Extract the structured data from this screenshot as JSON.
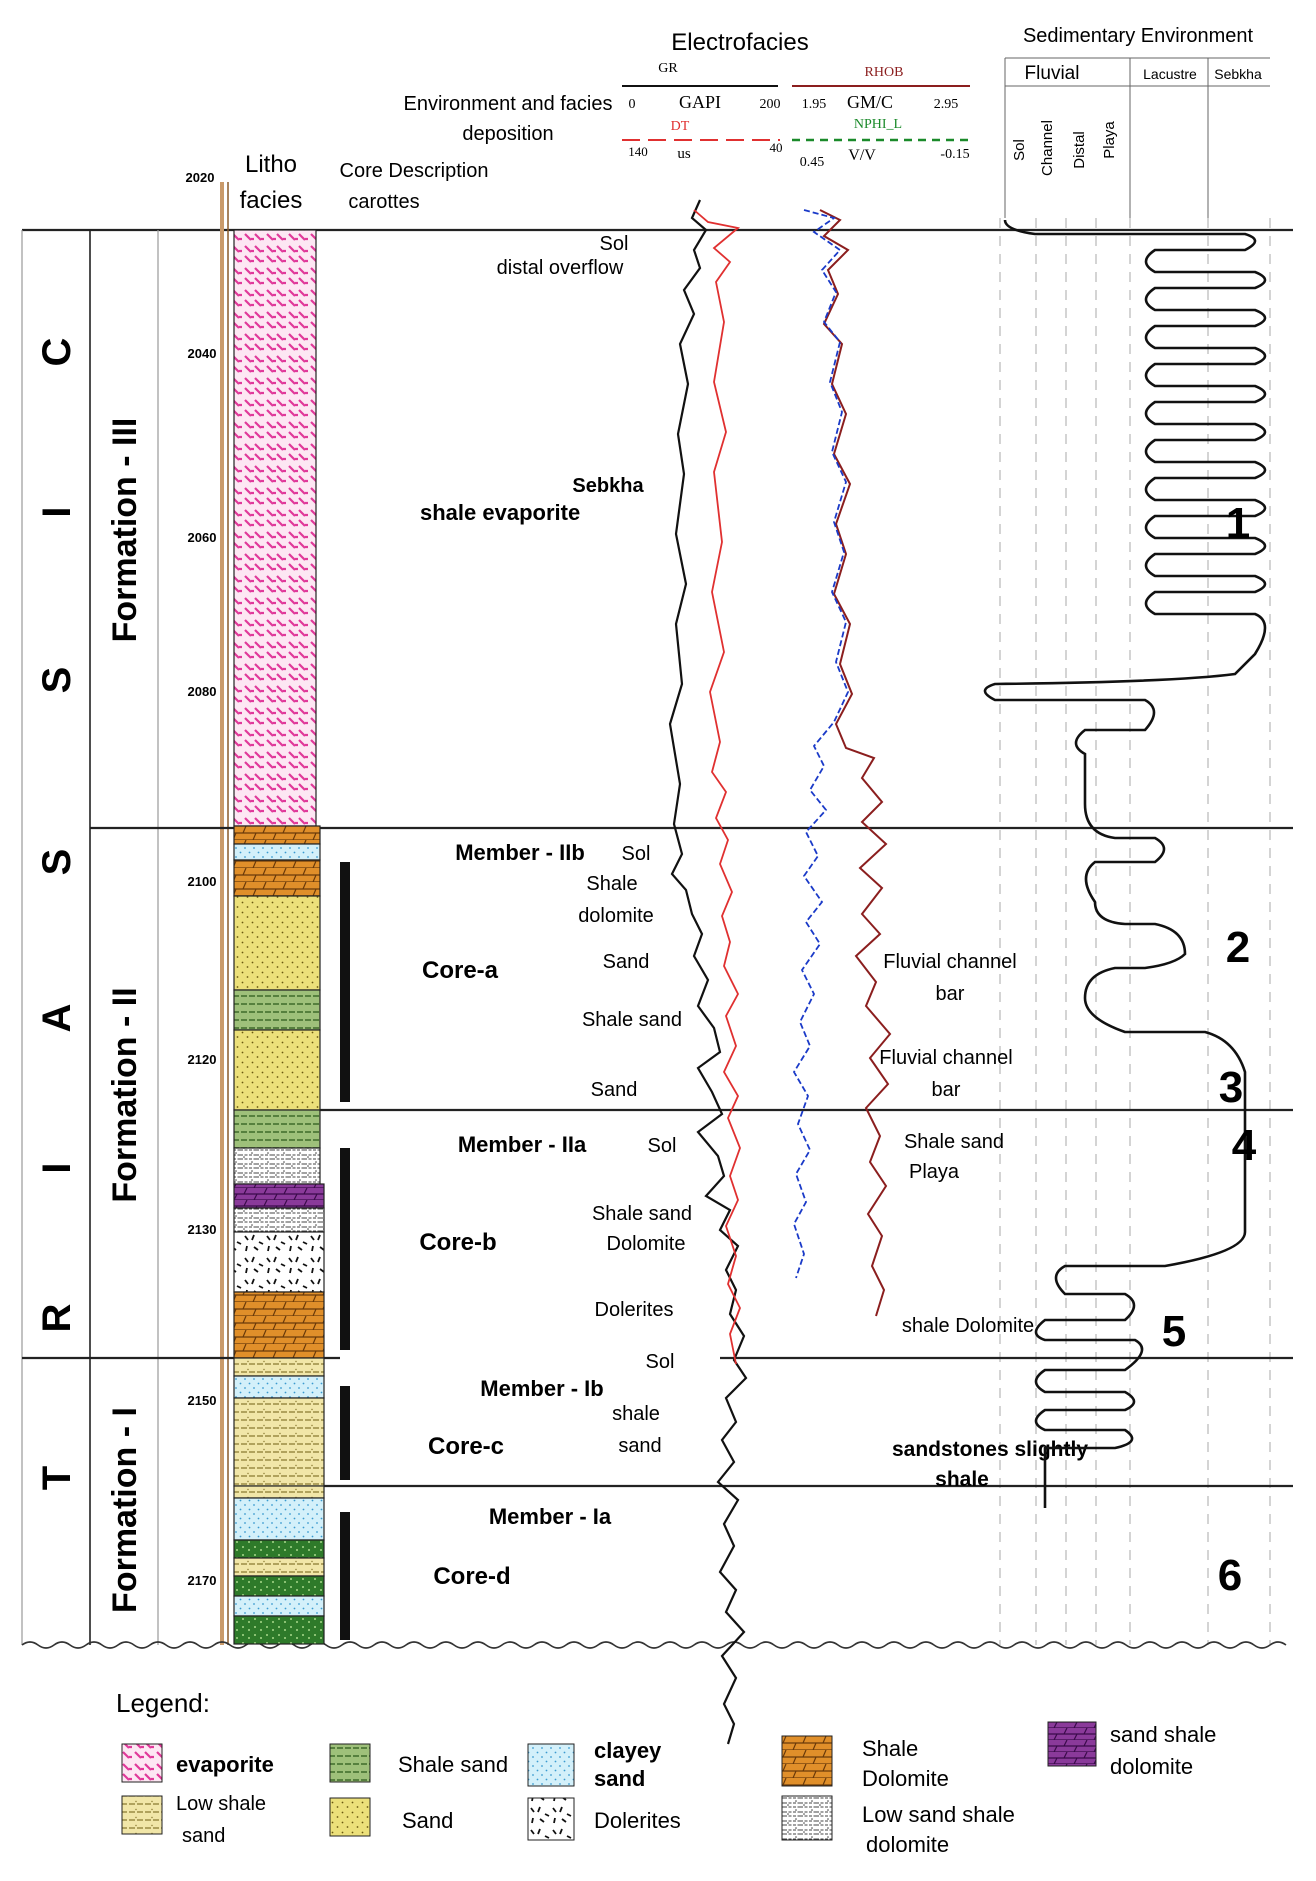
{
  "header": {
    "electrofacies_title": "Electrofacies",
    "env_facies_line1": "Environment and facies",
    "env_facies_line2": "deposition",
    "litho_line1": "Litho",
    "litho_line2": "facies",
    "core_desc_line1": "Core Description",
    "core_desc_line2": "carottes",
    "top_depth": "2020",
    "sed_env_title": "Sedimentary Environment",
    "fluvial": "Fluvial",
    "lacustre": "Lacustre",
    "sebkha": "Sebkha",
    "sub_sol": "Sol",
    "sub_channel": "Channel",
    "sub_distal": "Distal",
    "sub_playa": "Playa"
  },
  "logs": {
    "gr": {
      "name": "GR",
      "unit": "GAPI",
      "min": "0",
      "max": "200",
      "color": "#111111"
    },
    "rhob": {
      "name": "RHOB",
      "unit": "GM/C",
      "min": "1.95",
      "max": "2.95",
      "color": "#8b1e1e"
    },
    "dt": {
      "name": "DT",
      "unit": "us",
      "min": "140",
      "max": "40",
      "color": "#e03030"
    },
    "nphi": {
      "name": "NPHI_L",
      "unit": "V/V",
      "min": "0.45",
      "max": "-0.15",
      "color": "#1a8a2a"
    }
  },
  "depth_ticks": [
    "2040",
    "2060",
    "2080",
    "2100",
    "2120",
    "2130",
    "2150",
    "2170"
  ],
  "stratigraphy": {
    "system_letters": [
      "T",
      "R",
      "I",
      "A",
      "S",
      "S",
      "I",
      "C"
    ],
    "formations": [
      "Formation - III",
      "Formation - II",
      "Formation - I"
    ]
  },
  "descriptions": {
    "shale_evaporite": "shale evaporite",
    "sol_top": "Sol",
    "distal_overflow": "distal overflow",
    "sebkha": "Sebkha",
    "member_iib": "Member - IIb",
    "sol_iib": "Sol",
    "shale_dolomite_1": "Shale",
    "shale_dolomite_2": "dolomite",
    "sand_1": "Sand",
    "shale_sand_1": "Shale sand",
    "sand_2": "Sand",
    "core_a": "Core-a",
    "fluvial_bar_1a": "Fluvial channel",
    "fluvial_bar_1b": "bar",
    "fluvial_bar_2a": "Fluvial channel",
    "fluvial_bar_2b": "bar",
    "member_iia": "Member - IIa",
    "sol_iia": "Sol",
    "shale_sand_playa_a": "Shale  sand",
    "shale_sand_playa_b": "Playa",
    "core_b": "Core-b",
    "shale_sand_2": "Shale sand",
    "dolomite": "Dolomite",
    "dolerites": "Dolerites",
    "shale_dolomite_right": "shale Dolomite",
    "sol_ib_top": "Sol",
    "member_ib": "Member - Ib",
    "shale_sand_ib_a": "shale",
    "shale_sand_ib_b": "sand",
    "core_c": "Core-c",
    "sandstones_a": "sandstones slightly",
    "sandstones_b": "shale",
    "member_ia": "Member - Ia",
    "core_d": "Core-d"
  },
  "zones": [
    "1",
    "2",
    "3",
    "4",
    "5",
    "6"
  ],
  "legend": {
    "title": "Legend:",
    "items": {
      "evaporite": "evaporite",
      "low_shale_sand_a": "Low shale",
      "low_shale_sand_b": "sand",
      "shale_sand": "Shale sand",
      "sand": "Sand",
      "clayey_sand_a": "clayey",
      "clayey_sand_b": "sand",
      "dolerites": "Dolerites",
      "shale_dolomite_a": "Shale",
      "shale_dolomite_b": "Dolomite",
      "low_sand_shale_dolomite_a": "Low sand shale",
      "low_sand_shale_dolomite_b": "dolomite",
      "sand_shale_dolomite_a": "sand shale",
      "sand_shale_dolomite_b": "dolomite"
    }
  },
  "colors": {
    "evaporite": "#f06fbf",
    "sand": "#ece07a",
    "shale_sand": "#9ec07a",
    "clayey_sand": "#bfe8f6",
    "shale_dolomite": "#e08f2a",
    "sand_shale_dolomite": "#8a3a9a",
    "dark_green": "#2e7a2a",
    "low_shale_sand": "#f1e6a8"
  }
}
